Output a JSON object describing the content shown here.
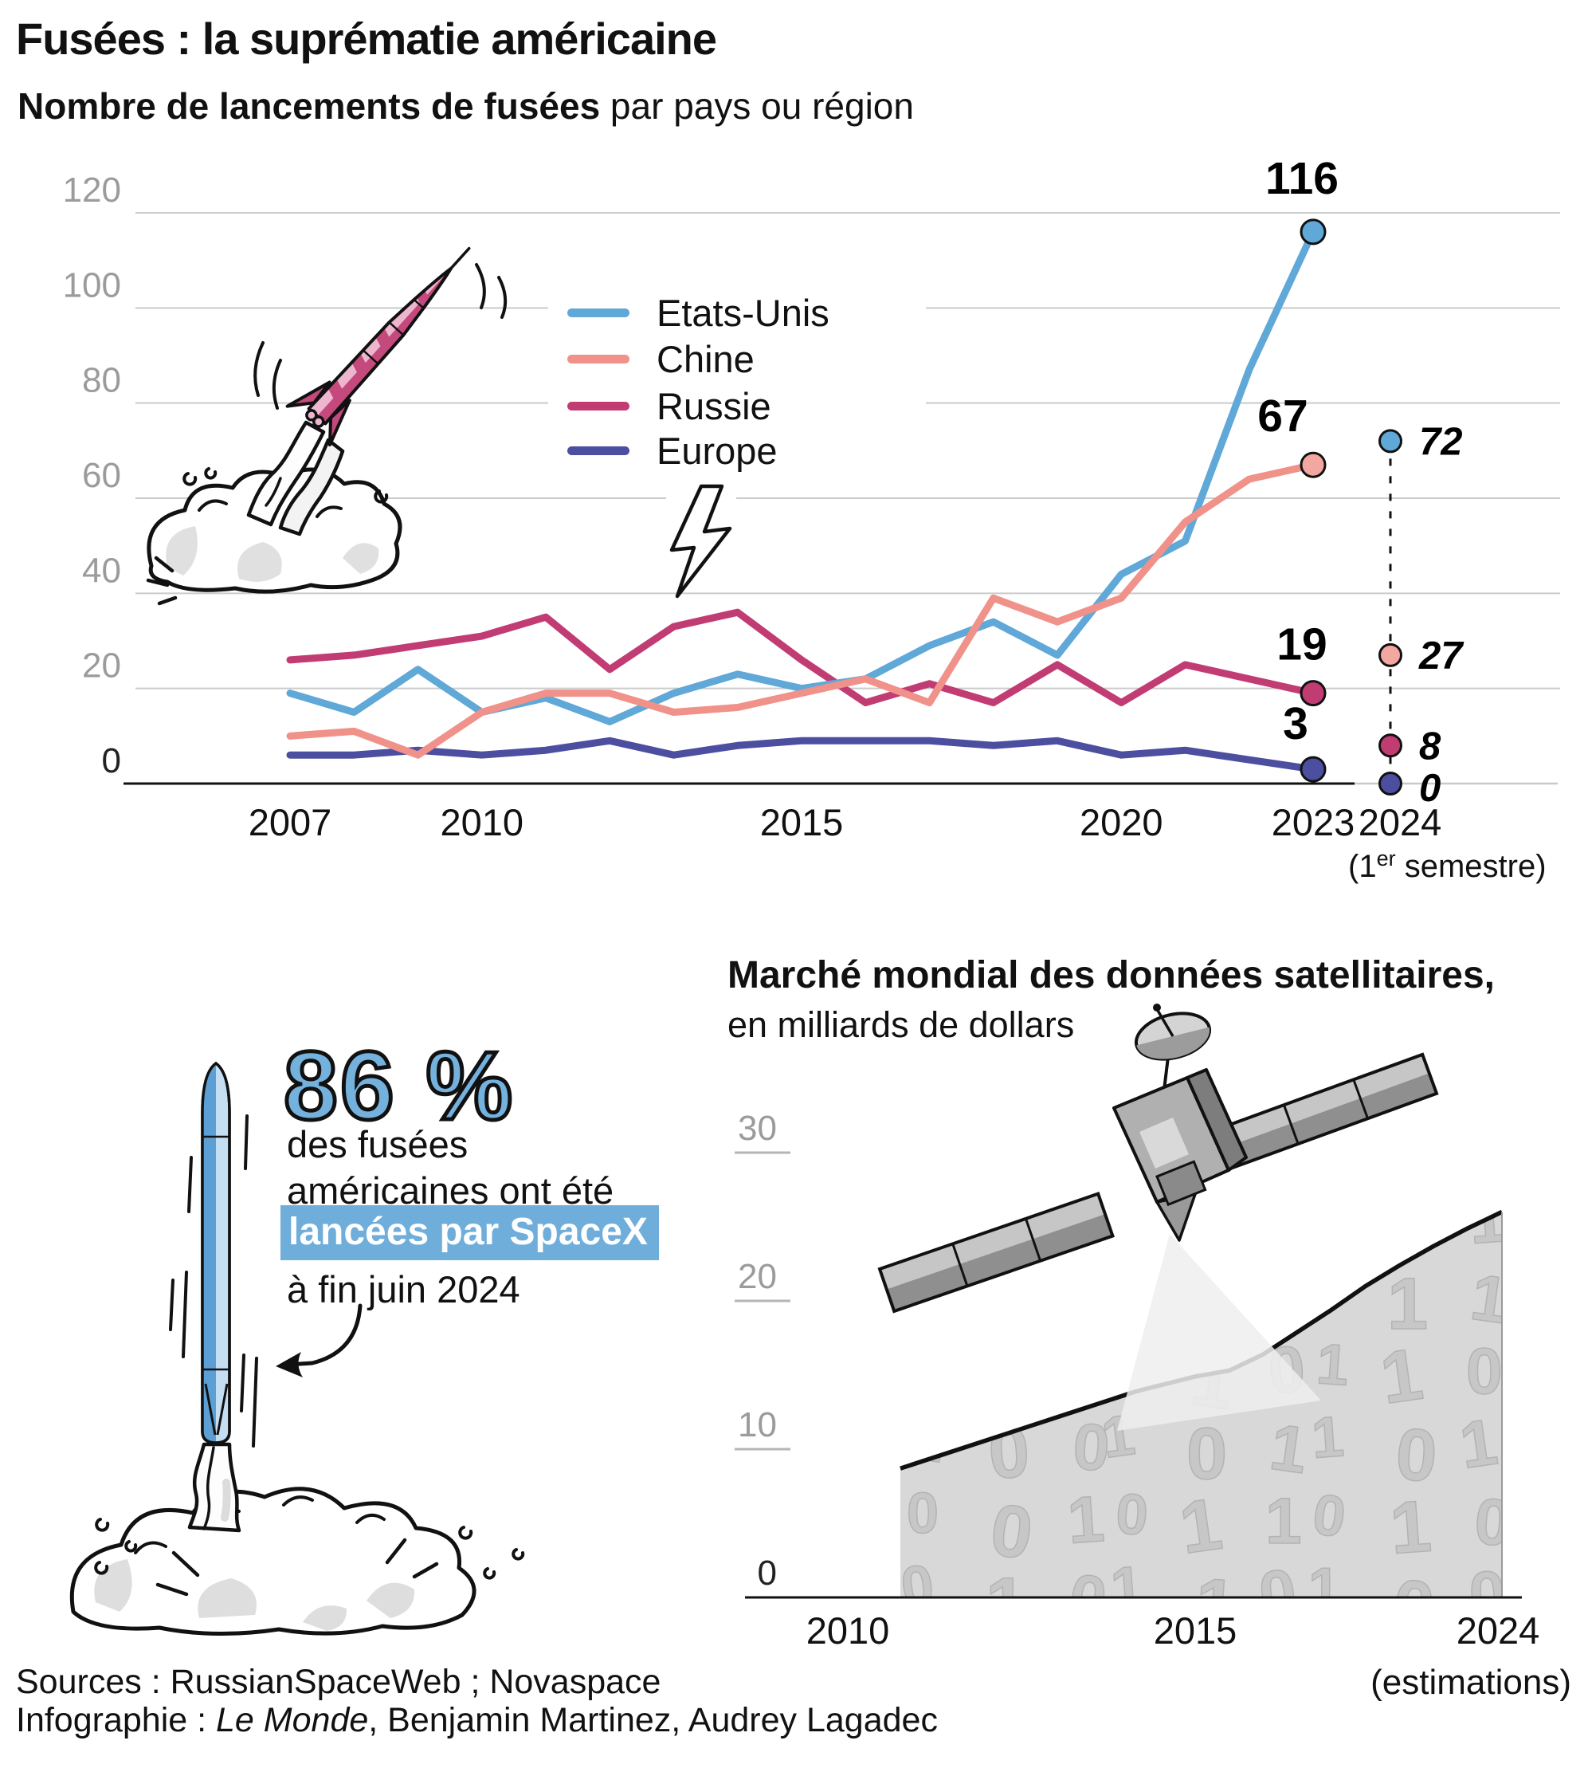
{
  "header": {
    "title": "Fusées : la suprématie américaine",
    "subtitle_bold": "Nombre de lancements de fusées",
    "subtitle_rest": " par pays ou région"
  },
  "chart_data": [
    {
      "type": "line",
      "title": "Nombre de lancements de fusées par pays ou région",
      "x": [
        2007,
        2008,
        2009,
        2010,
        2011,
        2012,
        2013,
        2014,
        2015,
        2016,
        2017,
        2018,
        2019,
        2020,
        2021,
        2022,
        2023
      ],
      "series": [
        {
          "name": "Etats-Unis",
          "color": "#5fa8d8",
          "dot": "#5fa8d8",
          "values": [
            19,
            15,
            24,
            15,
            18,
            13,
            19,
            23,
            20,
            22,
            29,
            34,
            27,
            44,
            51,
            87,
            116
          ],
          "end_label": "116",
          "h1_2024": 72
        },
        {
          "name": "Chine",
          "color": "#f0918a",
          "dot": "#f2a7a0",
          "values": [
            10,
            11,
            6,
            15,
            19,
            19,
            15,
            16,
            19,
            22,
            17,
            39,
            34,
            39,
            55,
            64,
            67
          ],
          "end_label": "67",
          "h1_2024": 27
        },
        {
          "name": "Russie",
          "color": "#c23c74",
          "dot": "#c23c74",
          "values": [
            26,
            27,
            29,
            31,
            35,
            24,
            33,
            36,
            26,
            17,
            21,
            17,
            25,
            17,
            25,
            22,
            19
          ],
          "end_label": "19",
          "h1_2024": 8
        },
        {
          "name": "Europe",
          "color": "#4c4fa0",
          "dot": "#4c4fa0",
          "values": [
            6,
            6,
            7,
            6,
            7,
            9,
            6,
            8,
            9,
            9,
            9,
            8,
            9,
            6,
            7,
            5,
            3
          ],
          "end_label": "3",
          "h1_2024": 0
        }
      ],
      "ylim": [
        0,
        120
      ],
      "yticks": [
        0,
        20,
        40,
        60,
        80,
        100,
        120
      ],
      "xticks": [
        2007,
        2010,
        2015,
        2020,
        2023
      ],
      "x2024": {
        "label": "2024",
        "sub_pre": "(1",
        "sub_sup": "er",
        "sub_post": " semestre)"
      },
      "grid": true,
      "legend_position": "upper-middle"
    },
    {
      "type": "area",
      "title": "Marché mondial des données satellitaires,",
      "subtitle": "en milliards de dollars",
      "x": [
        2010,
        2011,
        2012,
        2013,
        2014,
        2015,
        2016,
        2017,
        2018,
        2019,
        2020,
        2021,
        2022,
        2023,
        2024
      ],
      "values": [
        8.7,
        10,
        11.3,
        12.6,
        13.9,
        14.9,
        15.3,
        16.4,
        17.9,
        19.4,
        21,
        22.4,
        23.7,
        24.9,
        26
      ],
      "ylim": [
        0,
        30
      ],
      "yticks": [
        0,
        10,
        20,
        30
      ],
      "xticks": [
        {
          "label": "2010",
          "x": 1064
        },
        {
          "label": "2015",
          "x": 1500
        },
        {
          "label": "2024",
          "x": 1880
        }
      ],
      "x_note": "(estimations)"
    }
  ],
  "stat": {
    "value": "86 %",
    "line1": "des fusées",
    "line2": "américaines ont été",
    "highlight": "lancées par SpaceX",
    "line3": "à fin juin 2024"
  },
  "footer": {
    "sources": "Sources : RussianSpaceWeb ; Novaspace",
    "info_prefix": "Infographie : ",
    "info_italic": "Le Monde",
    "info_rest": ", Benjamin Martinez, Audrey Lagadec"
  },
  "colors": {
    "us": "#5fa8d8",
    "chine": "#f0918a",
    "russie": "#c23c74",
    "europe": "#4c4fa0",
    "grid": "#cbcbcb",
    "tick_text": "#9b9b9b",
    "highlight": "#6fadda",
    "stat_blue": "#74b2dd",
    "area_fill": "#d8d8d8",
    "pattern_glyph": "#c7c7c7"
  }
}
